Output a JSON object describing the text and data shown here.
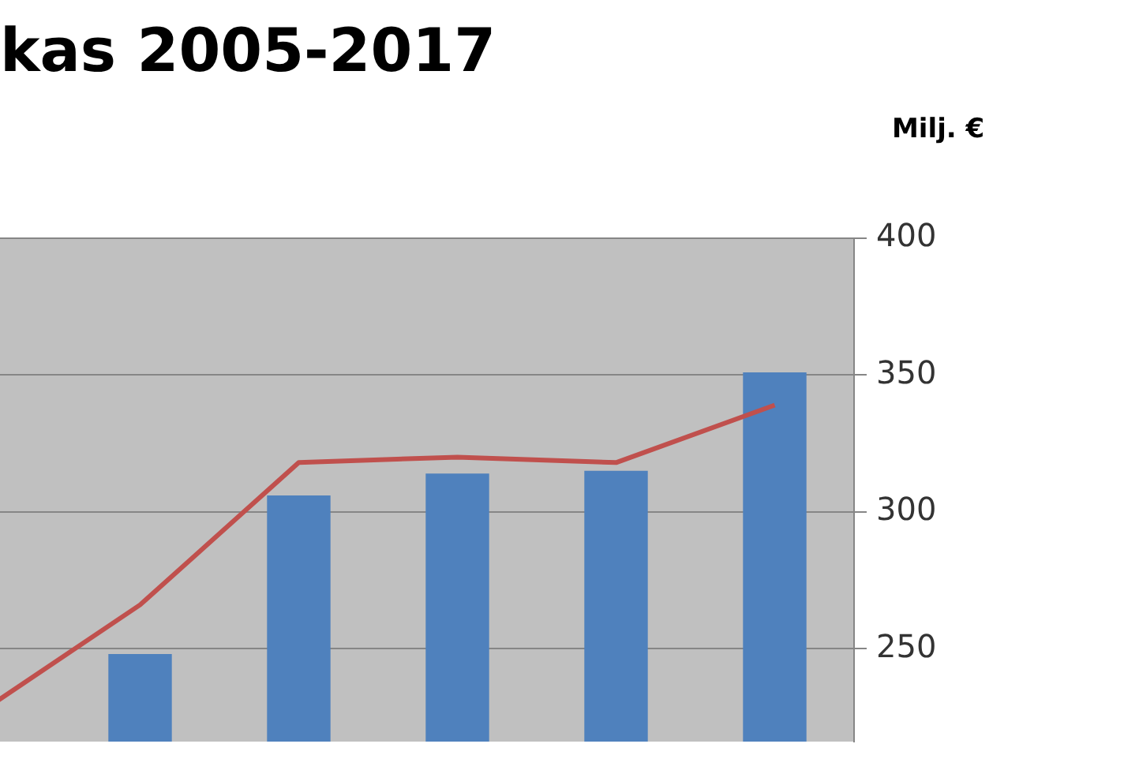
{
  "chart_data": {
    "type": "bar",
    "title": "kas 2005-2017",
    "ylabel": "Milj. €",
    "categories": [
      null,
      null,
      null,
      null,
      null,
      null
    ],
    "series": [
      {
        "color": "#4f81bd",
        "values": [
          null,
          248,
          306,
          314,
          315,
          351
        ]
      },
      {
        "type": "line",
        "color": "#c0504d",
        "values": [
          227,
          266,
          318,
          320,
          318,
          339
        ]
      }
    ],
    "ylim": [
      216,
      400
    ],
    "yticks": [
      250,
      300,
      350,
      400
    ],
    "grid": "y",
    "tick_labels": "y",
    "legend": false,
    "marker": "none"
  }
}
